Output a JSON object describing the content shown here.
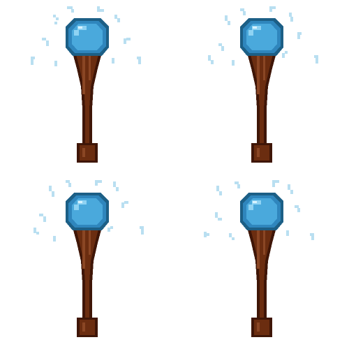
{
  "sprite_sheet": {
    "frame_count": 4,
    "columns": 2,
    "rows": 2,
    "background": "#ffffff",
    "palette": {
      "orb_outline": "#1c5f86",
      "orb_rim": "#2f86bd",
      "orb_fill": "#4aa9dc",
      "orb_light": "#8fd3f3",
      "orb_highlight": "#d8f3ff",
      "wood_outline": "#3f1607",
      "wood_main": "#6b2d10",
      "wood_light": "#8a4624",
      "spark": "#b9dff1"
    },
    "frames": [
      {
        "index": 1,
        "sprite": "magic-orb-staff",
        "sparkle_icon": "spark-icon"
      },
      {
        "index": 2,
        "sprite": "magic-orb-staff",
        "sparkle_icon": "spark-icon"
      },
      {
        "index": 3,
        "sprite": "magic-orb-staff",
        "sparkle_icon": "spark-icon"
      },
      {
        "index": 4,
        "sprite": "magic-orb-staff",
        "sparkle_icon": "spark-icon"
      }
    ]
  }
}
